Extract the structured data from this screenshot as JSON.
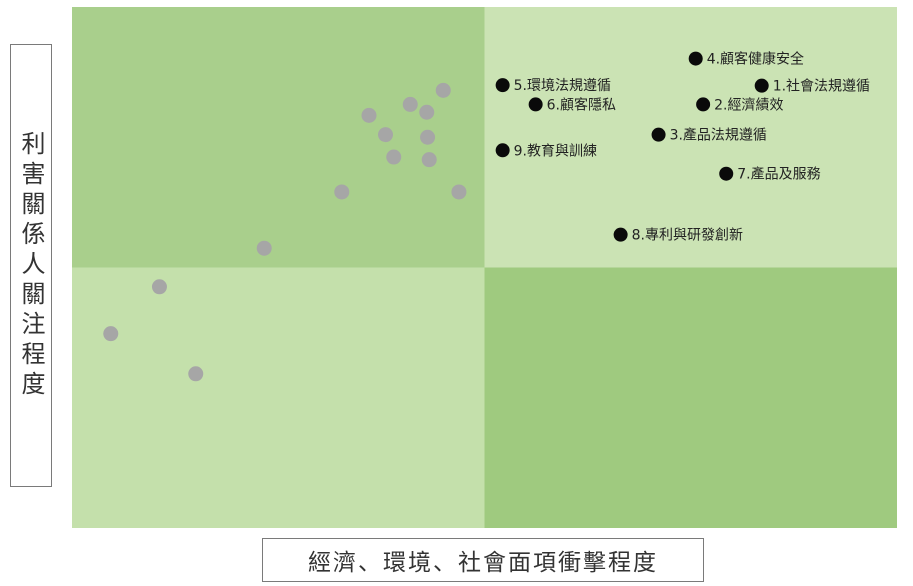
{
  "chart_data": {
    "type": "scatter",
    "title": "",
    "xlabel": "經濟、環境、社會面項衝擊程度",
    "ylabel": "利害關係人關注程度",
    "quadrant_colors": {
      "top_left": "#a9cf8c",
      "top_right": "#cbe3b4",
      "bottom_left": "#c4e0ab",
      "bottom_right": "#9fca7f"
    },
    "highlighted_points": [
      {
        "label": "1.社會法規遵循",
        "x": 0.836,
        "y": 0.849
      },
      {
        "label": "2.經濟績效",
        "x": 0.765,
        "y": 0.813
      },
      {
        "label": "3.產品法規遵循",
        "x": 0.711,
        "y": 0.755
      },
      {
        "label": "4.顧客健康安全",
        "x": 0.756,
        "y": 0.901
      },
      {
        "label": "5.環境法規遵循",
        "x": 0.522,
        "y": 0.85
      },
      {
        "label": "6.顧客隱私",
        "x": 0.562,
        "y": 0.813
      },
      {
        "label": "7.產品及服務",
        "x": 0.793,
        "y": 0.68
      },
      {
        "label": "8.專利與研發創新",
        "x": 0.665,
        "y": 0.563
      },
      {
        "label": "9.教育與訓練",
        "x": 0.522,
        "y": 0.725
      }
    ],
    "other_points": [
      {
        "x": 0.36,
        "y": 0.792
      },
      {
        "x": 0.41,
        "y": 0.813
      },
      {
        "x": 0.43,
        "y": 0.798
      },
      {
        "x": 0.45,
        "y": 0.84
      },
      {
        "x": 0.38,
        "y": 0.755
      },
      {
        "x": 0.431,
        "y": 0.75
      },
      {
        "x": 0.39,
        "y": 0.712
      },
      {
        "x": 0.433,
        "y": 0.707
      },
      {
        "x": 0.327,
        "y": 0.645
      },
      {
        "x": 0.469,
        "y": 0.645
      },
      {
        "x": 0.233,
        "y": 0.537
      },
      {
        "x": 0.106,
        "y": 0.463
      },
      {
        "x": 0.047,
        "y": 0.373
      },
      {
        "x": 0.15,
        "y": 0.296
      }
    ],
    "highlight_color": "#0a0a0a",
    "other_color": "#a6a6a6",
    "xlim": [
      0,
      1
    ],
    "ylim": [
      0,
      1
    ],
    "grid": false,
    "legend": "none"
  }
}
